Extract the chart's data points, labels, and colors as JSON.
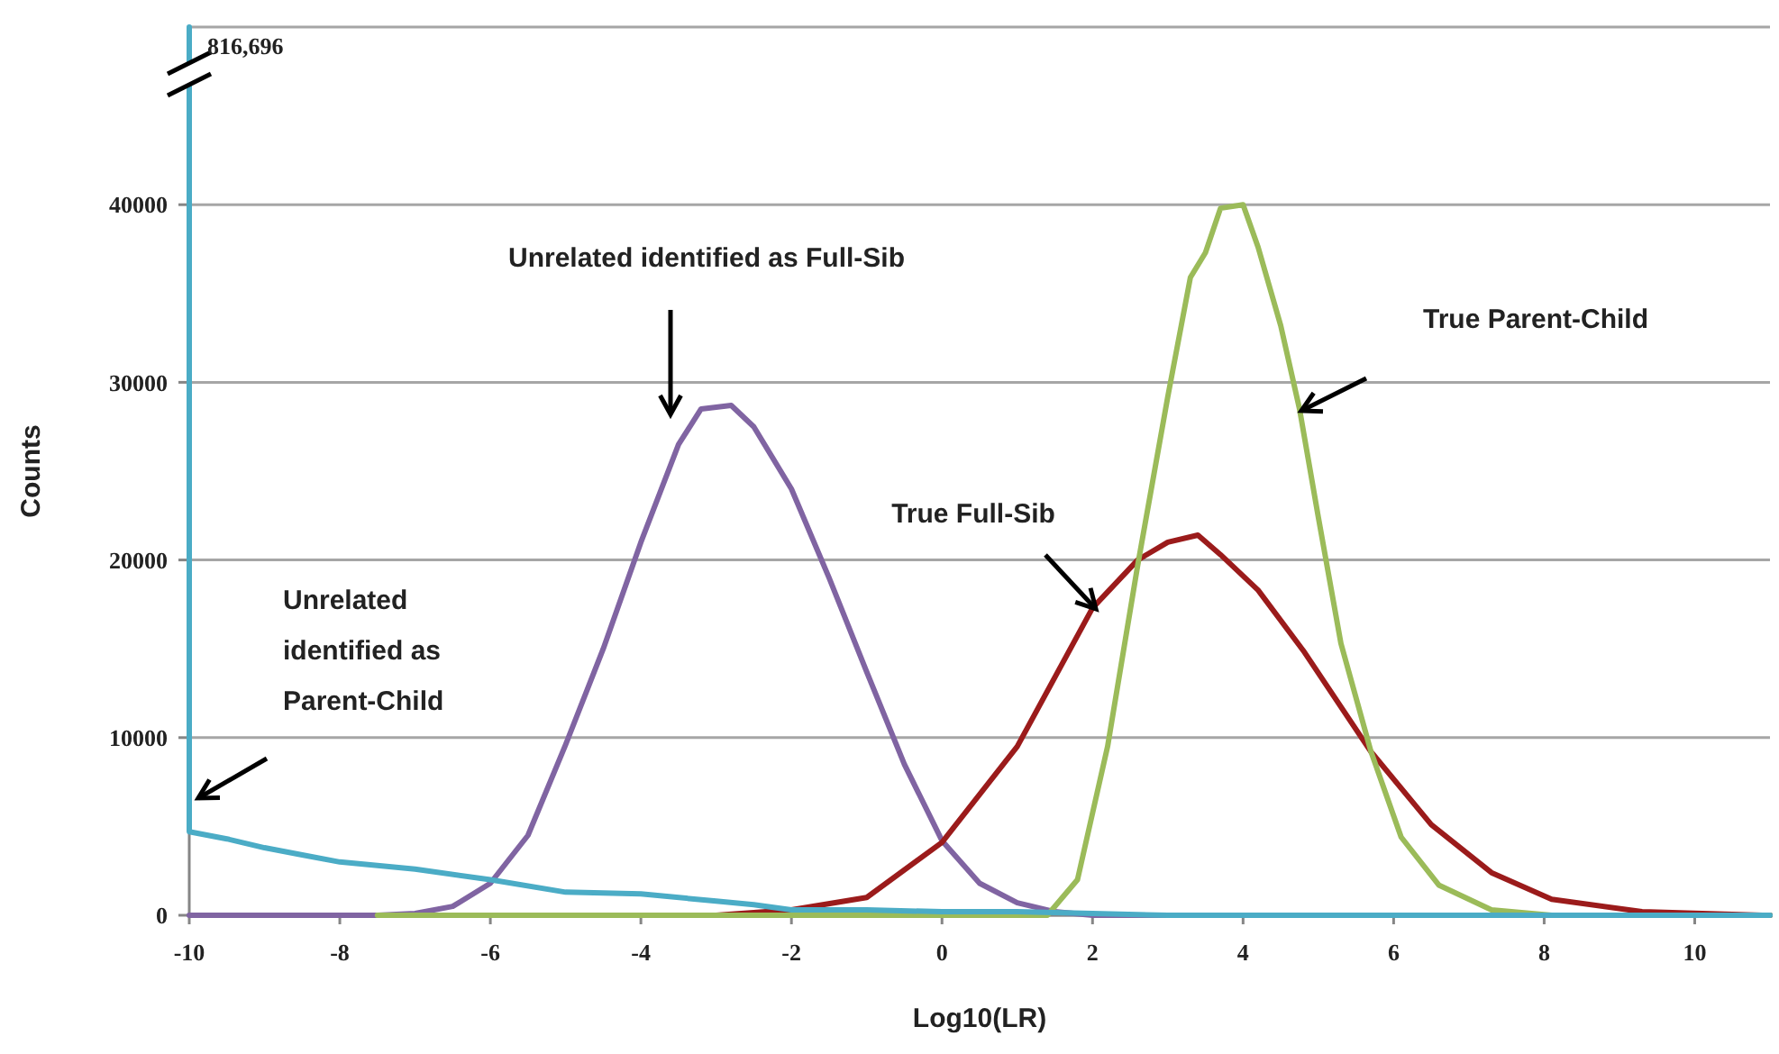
{
  "chart_data": {
    "type": "line",
    "xlabel": "Log10(LR)",
    "ylabel": "Counts",
    "xlim": [
      -10,
      11
    ],
    "ylim": [
      0,
      50000
    ],
    "xticks": [
      -10,
      -8,
      -6,
      -4,
      -2,
      0,
      2,
      4,
      6,
      8,
      10
    ],
    "yticks": [
      0,
      10000,
      20000,
      30000,
      40000
    ],
    "grid": "y",
    "marker": "none",
    "line_style": "solid",
    "series": [
      {
        "color": "#8064a2",
        "x": [
          -10,
          -7.5,
          -7,
          -6.5,
          -6,
          -5.5,
          -5,
          -4.5,
          -4,
          -3.5,
          -3.2,
          -2.8,
          -2.5,
          -2,
          -1.5,
          -1,
          -0.5,
          0,
          0.5,
          1,
          1.5,
          2,
          3,
          11
        ],
        "values": [
          0,
          0,
          100,
          500,
          1800,
          4500,
          9600,
          15000,
          21000,
          26500,
          28500,
          28700,
          27500,
          24000,
          19000,
          13700,
          8500,
          4200,
          1800,
          700,
          200,
          0,
          0,
          0
        ]
      },
      {
        "color": "#9b1b1b",
        "x": [
          -3,
          -2,
          -1,
          0,
          1,
          2,
          2.6,
          3,
          3.4,
          3.7,
          4.2,
          4.8,
          5.7,
          6.5,
          7.3,
          8.1,
          9.3,
          10.9,
          11
        ],
        "values": [
          0,
          300,
          1000,
          4100,
          9500,
          17300,
          20000,
          21000,
          21400,
          20300,
          18300,
          14900,
          9200,
          5100,
          2400,
          900,
          200,
          0,
          0
        ]
      },
      {
        "color": "#9bbb59",
        "x": [
          -7.5,
          1.4,
          1.8,
          2.2,
          2.6,
          3,
          3.3,
          3.5,
          3.7,
          4,
          4.2,
          4.5,
          4.75,
          5,
          5.3,
          5.7,
          6.1,
          6.6,
          7.3,
          8.1,
          11
        ],
        "values": [
          0,
          0,
          2000,
          9500,
          19700,
          29200,
          35900,
          37300,
          39800,
          40000,
          37600,
          33200,
          28500,
          22400,
          15300,
          9200,
          4400,
          1700,
          300,
          0,
          0
        ]
      },
      {
        "color": "#4bacc6",
        "x": [
          -10,
          -10,
          -9.5,
          -9,
          -8.5,
          -8,
          -7,
          -6,
          -5,
          -4,
          -3,
          -2.5,
          -2,
          -1,
          0,
          1,
          2,
          3,
          5,
          8,
          11
        ],
        "values": [
          50000,
          4700,
          4300,
          3800,
          3400,
          3000,
          2600,
          2000,
          1300,
          1200,
          800,
          600,
          300,
          300,
          200,
          200,
          100,
          0,
          0,
          0,
          0
        ]
      }
    ],
    "annotations": [
      {
        "text": "816,696",
        "x": -10,
        "y": 50000
      },
      "Unrelated identified as Full-Sib",
      "True Parent-Child",
      "True Full-Sib",
      "Unrelated identified as Parent-Child"
    ]
  }
}
